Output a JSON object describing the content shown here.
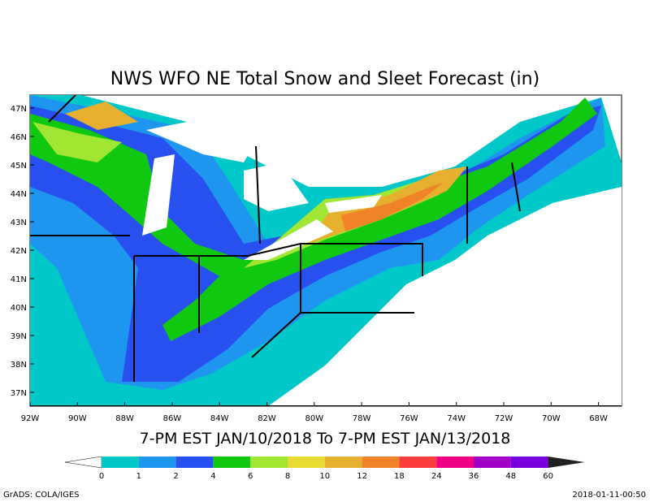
{
  "title": "NWS WFO NE Total Snow and Sleet Forecast (in)",
  "subtitle": "7-PM EST JAN/10/2018 To 7-PM EST JAN/13/2018",
  "lat_labels": [
    "47N",
    "46N",
    "45N",
    "44N",
    "43N",
    "42N",
    "41N",
    "40N",
    "39N",
    "38N",
    "37N"
  ],
  "lon_labels": [
    "92W",
    "90W",
    "88W",
    "86W",
    "84W",
    "82W",
    "80W",
    "78W",
    "76W",
    "74W",
    "72W",
    "70W",
    "68W"
  ],
  "colorbar": {
    "levels": [
      "0",
      "1",
      "2",
      "4",
      "6",
      "8",
      "10",
      "12",
      "18",
      "24",
      "36",
      "48",
      "60"
    ],
    "colors": [
      "#ffffff",
      "#00c8c8",
      "#1e96f0",
      "#2850f0",
      "#10c810",
      "#a0e632",
      "#e6dc32",
      "#e6af2d",
      "#f08228",
      "#fa3c3c",
      "#f00082",
      "#a000c8",
      "#7800dc",
      "#202020"
    ]
  },
  "footer": {
    "left": "GrADS: COLA/IGES",
    "right": "2018-01-11-00:50"
  }
}
